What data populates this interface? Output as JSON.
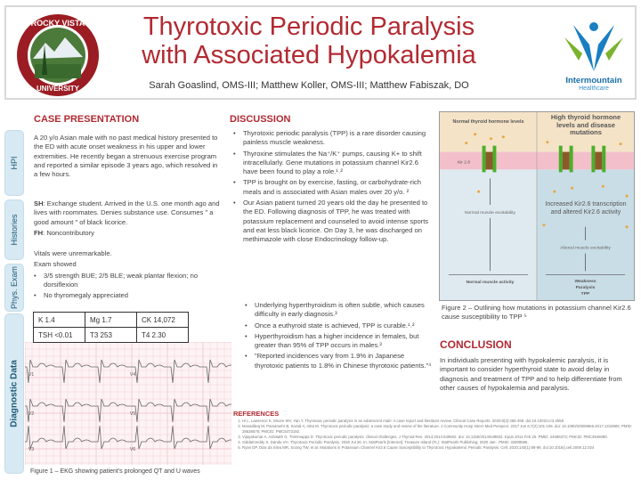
{
  "header": {
    "title_line1": "Thyrotoxic Periodic Paralysis",
    "title_line2": "with Associated Hypokalemia",
    "authors": "Sarah Goaslind, OMS-III; Matthew Koller, OMS-III; Matthew Fabiszak, DO",
    "left_logo_text": "ROCKY VISTA UNIVERSITY",
    "right_logo_name": "Intermountain",
    "right_logo_sub": "Healthcare"
  },
  "colors": {
    "accent": "#b22a32",
    "tab_bg": "#d7e9f2",
    "tab_text": "#1f5a7a",
    "ekg_grid": "#f3c9cf"
  },
  "case": {
    "heading": "CASE PRESENTATION",
    "tabs": {
      "hpi": "HPI",
      "histories": "Histories",
      "exam": "Phys. Exam",
      "diag": "Diagnostic Data"
    },
    "hpi": "A 20 y/o Asian male with no past medical history presented to the ED with acute onset weakness in his upper and lower extremities. He recently began a strenuous exercise program and reported a similar episode 3 years ago, which resolved in a few hours.",
    "sh_label": "SH",
    "sh": ": Exchange student. Arrived in the U.S. one month ago and lives with roommates. Denies substance use. Consumes \" a good amount \" of black licorice.",
    "fh_label": "FH",
    "fh": ": Noncontributory",
    "vitals": "Vitals were unremarkable.",
    "exam_intro": "Exam showed",
    "exam_items": [
      "3/5 strength BUE; 2/5 BLE; weak plantar flexion; no dorsiflexion",
      "No thyromegaly appreciated"
    ],
    "labs": [
      [
        "K 1.4",
        "Mg 1.7",
        "CK 14,072"
      ],
      [
        "TSH <0.01",
        "T3 253",
        "T4 2.30"
      ]
    ],
    "ekg_leads": [
      "V1",
      "V2",
      "V3",
      "V4",
      "V5",
      "V6"
    ],
    "fig1_caption": "Figure 1 – EKG showing patient's prolonged QT and U waves"
  },
  "discussion": {
    "heading": "DISCUSSION",
    "items": [
      "Thyrotoxic periodic paralysis (TPP) is a rare disorder causing painless muscle weakness.",
      "Thyroxine stimulates the Na⁺/K⁺ pumps, causing K+ to shift intracellularly. Gene mutations in potassium channel Kir2.6 have been found to play a role.¹˒²",
      "TPP is brought on by exercise, fasting, or carbohydrate-rich meals and is associated with Asian males over 20 y/o. ²",
      "Our Asian patient turned 20 years old the day he presented to the ED. Following diagnosis of TPP, he was treated with potassium replacement and counseled to avoid intense sports and eat less black licorice. On Day 3, he was discharged on methimazole with close Endocrinology follow-up."
    ],
    "items2": [
      "Underlying hyperthyroidism is often subtle, which causes difficulty in early diagnosis.³",
      "Once a euthyroid state is achieved, TPP is curable.¹˒²",
      "Hyperthyroidism has a higher incidence in females, but greater than 95% of TPP occurs in males.³",
      "\"Reported incidences vary from 1.9% in Japanese thyrotoxic patients to 1.8% in Chinese thyrotoxic patients.\"⁴"
    ]
  },
  "figure2": {
    "left_title": "Normal thyroid hormone levels",
    "right_title": "High thyroid hormone levels and disease mutations",
    "channel_label": "Kir 2.6",
    "right_mid": "Increased Kir2.6 transcription and altered Kir2.6 activity",
    "left_excit": "Normal muscle excitability",
    "right_excit": "Altered muscle excitability",
    "left_outcome": "Normal muscle activity",
    "right_outcome": [
      "Weakness",
      "Paralysis",
      "TPP"
    ],
    "caption": "Figure 2 – Outlining how mutations in potassium channel Kir2.6 cause susceptibility to TPP ⁵"
  },
  "conclusion": {
    "heading": "CONCLUSION",
    "text": "In individuals presenting with hypokalemic paralysis, it is important to consider hyperthyroid state to avoid delay in diagnosis and treatment of TPP and to help differentiate from other causes of hypokalemia and paralysis."
  },
  "references": {
    "heading": "REFERENCES",
    "items": [
      "Hi L, Lawrence K, Moore WV, Yan Y. Thyrotoxic periodic paralysis in an adolescent male: A case report and literature review. Clinical Case Reports. 2020;8(3):465-469. doi:10.1002/ccr3.2558",
      "Mosaddeq M, Parsamehr B, Kozali A, Aitta M. Thyrotoxic periodic paralysis: a case study and review of the literature. J Community Hosp Intern Med Perspect. 2017 Jun 6;7(2):101-106. doi: 10.1080/20009666.2017.1316906. PMID: 28638576; PMCID: PMC5473192.",
      "Vijayakumar A, Ashwath G, Thimmappa D. Thyrotoxic periodic paralysis: clinical challenges. J Thyroid Res. 2014;2014:649502. doi: 10.1155/2014/649502. Epub 2014 Feb 26. PMID: 24695373; PMCID: PMC3945080.",
      "Siddamreddy S, Dandu VH. Thyrotoxic Periodic Paralysis. 2020 Jul 26. In: StatPearls [Internet]. Treasure Island (FL): StatPearls Publishing; 2020 Jan-. PMID: 32809595.",
      "Ryan DP, Dias da Silva MR, Soong TW, et al. Mutations in Potassium Channel Kir2.6 Cause Susceptibility to Thyrotoxic Hypokalemic Periodic Paralysis. Cell. 2010;140(1):88-98. doi:10.1016/j.cell.2009.12.024"
    ]
  }
}
